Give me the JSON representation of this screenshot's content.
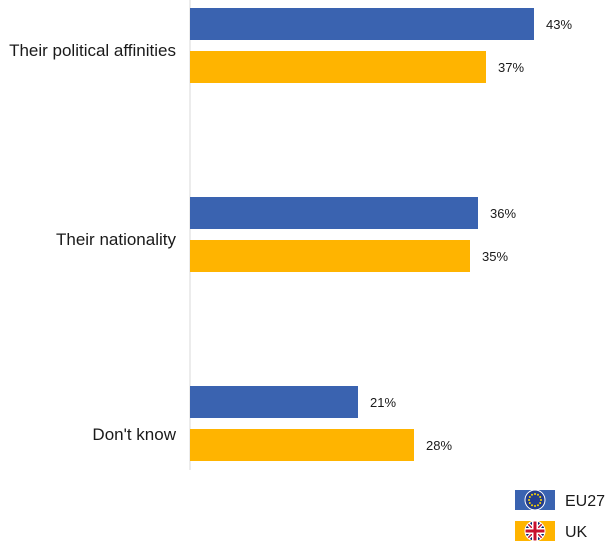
{
  "chart_data": {
    "type": "bar",
    "orientation": "horizontal",
    "categories": [
      "Their political affinities",
      "Their nationality",
      "Don't know"
    ],
    "series": [
      {
        "name": "EU27",
        "values": [
          43,
          36,
          21
        ],
        "labels": [
          "43%",
          "36%",
          "21%"
        ],
        "color": "#3a63b0",
        "icon": "eu-flag-icon"
      },
      {
        "name": "UK",
        "values": [
          37,
          35,
          28
        ],
        "labels": [
          "37%",
          "35%",
          "28%"
        ],
        "color": "#ffb400",
        "icon": "uk-flag-icon"
      }
    ],
    "unit": "%",
    "xlim": [
      0,
      43
    ],
    "grid": false,
    "legend_position": "bottom-right"
  }
}
